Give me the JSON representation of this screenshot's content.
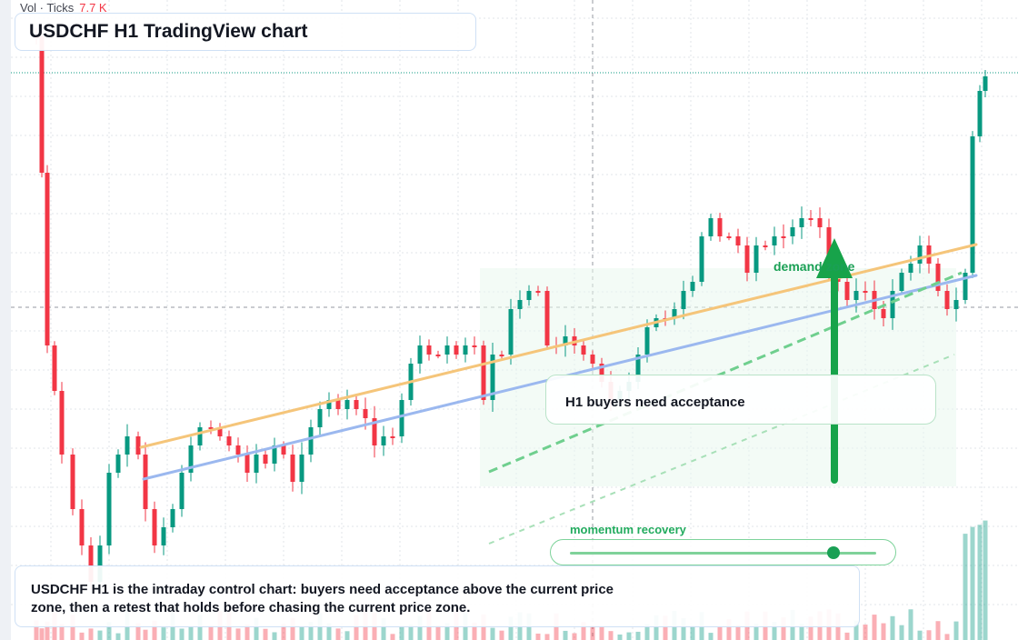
{
  "title": "USDCHF H1 TradingView chart",
  "volume_legend": {
    "label": "Vol · Ticks",
    "value": "7.7 K"
  },
  "note": "H1 buyers need acceptance",
  "demand_zone_label": "demand zone",
  "momentum": {
    "label": "momentum recovery",
    "level": 0.86
  },
  "summary": "USDCHF H1 is the intraday control chart: buyers need acceptance above the current price zone, then a retest that holds before chasing the current price zone.",
  "colors": {
    "up": "#089981",
    "down": "#f23645",
    "upper_trendline": "#f5c57a",
    "lower_trendline": "#9bb8ef",
    "zone_dashed": "#6fcf8e",
    "arrow": "#17a34a",
    "grid": "#e1e4ea"
  },
  "chart_data": {
    "type": "candlestick",
    "volume_indicator": "Vol · Ticks",
    "current_volume": "7.7 K",
    "annotations": [
      "demand zone",
      "H1 buyers need acceptance",
      "momentum recovery"
    ]
  }
}
